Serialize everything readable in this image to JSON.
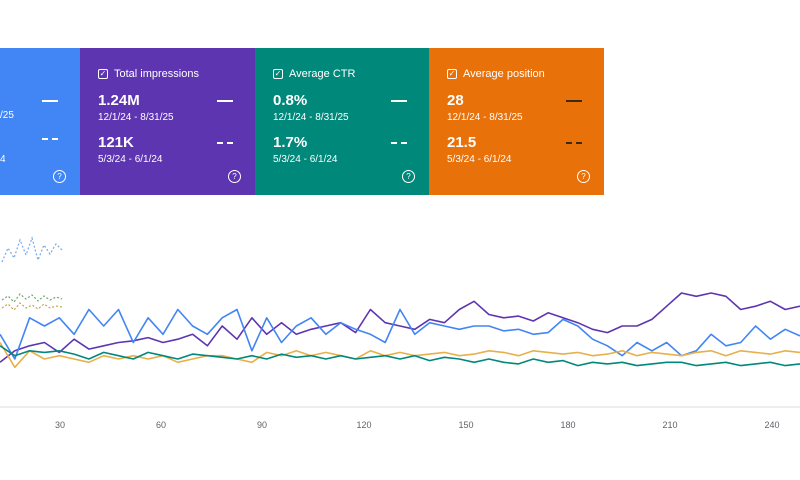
{
  "colors": {
    "clicks": "#4285f4",
    "impressions": "#5e35b1",
    "ctr": "#00897b",
    "position": "#e8710a"
  },
  "cards": [
    {
      "key": "clicks",
      "label": "",
      "current_value": "",
      "current_range": "",
      "prev_value": "",
      "prev_range": "",
      "help_icon": "help-icon"
    },
    {
      "key": "impressions",
      "label": "Total impressions",
      "current_value": "1.24M",
      "current_range": "12/1/24 - 8/31/25",
      "prev_value": "121K",
      "prev_range": "5/3/24 - 6/1/24",
      "help_icon": "help-icon"
    },
    {
      "key": "ctr",
      "label": "Average CTR",
      "current_value": "0.8%",
      "current_range": "12/1/24 - 8/31/25",
      "prev_value": "1.7%",
      "prev_range": "5/3/24 - 6/1/24",
      "help_icon": "help-icon"
    },
    {
      "key": "position",
      "label": "Average position",
      "current_value": "28",
      "current_range": "12/1/24 - 8/31/25",
      "prev_value": "21.5",
      "prev_range": "5/3/24 - 6/1/24",
      "help_icon": "help-icon"
    }
  ],
  "clicks_card_partial": {
    "range1": "/25",
    "range2": "4"
  },
  "chart_data": {
    "type": "line",
    "x_ticks": [
      "30",
      "60",
      "90",
      "120",
      "150",
      "180",
      "210",
      "240"
    ],
    "xlim": [
      0,
      240
    ],
    "grid": false,
    "series": [
      {
        "color": "#5e35b1",
        "values": [
          62,
          55,
          52,
          50,
          56,
          48,
          54,
          52,
          50,
          49,
          47,
          50,
          48,
          45,
          52,
          40,
          48,
          35,
          45,
          38,
          45,
          42,
          40,
          38,
          44,
          30,
          38,
          40,
          42,
          36,
          38,
          30,
          25,
          33,
          35,
          34,
          37,
          32,
          35,
          38,
          42,
          44,
          40,
          40,
          36,
          28,
          20,
          22,
          20,
          22,
          30,
          28,
          25,
          30,
          28
        ]
      },
      {
        "color": "#4285f4",
        "values": [
          45,
          60,
          35,
          40,
          35,
          45,
          30,
          40,
          30,
          50,
          35,
          45,
          30,
          40,
          45,
          35,
          30,
          55,
          35,
          50,
          40,
          35,
          45,
          38,
          42,
          45,
          50,
          30,
          45,
          38,
          40,
          42,
          40,
          40,
          43,
          42,
          45,
          44,
          36,
          40,
          48,
          52,
          58,
          50,
          55,
          50,
          58,
          55,
          45,
          52,
          50,
          40,
          48,
          42,
          46
        ]
      },
      {
        "color": "#e8b04a",
        "values": [
          50,
          65,
          55,
          60,
          58,
          60,
          62,
          58,
          60,
          58,
          60,
          58,
          62,
          60,
          58,
          58,
          60,
          62,
          56,
          58,
          55,
          58,
          56,
          58,
          60,
          55,
          58,
          56,
          58,
          57,
          56,
          58,
          57,
          55,
          56,
          58,
          55,
          56,
          57,
          56,
          58,
          57,
          55,
          58,
          56,
          57,
          58,
          56,
          55,
          58,
          55,
          56,
          57,
          55,
          56
        ]
      },
      {
        "color": "#00897b",
        "values": [
          52,
          58,
          55,
          56,
          55,
          57,
          60,
          56,
          58,
          60,
          56,
          58,
          60,
          57,
          58,
          59,
          60,
          58,
          60,
          57,
          59,
          58,
          60,
          58,
          60,
          59,
          58,
          60,
          58,
          61,
          59,
          60,
          62,
          60,
          62,
          63,
          60,
          62,
          61,
          64,
          62,
          63,
          62,
          64,
          63,
          62,
          62,
          64,
          63,
          62,
          64,
          63,
          62,
          64,
          63
        ]
      }
    ]
  }
}
